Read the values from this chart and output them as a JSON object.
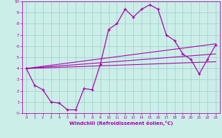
{
  "xlabel": "Windchill (Refroidissement éolien,°C)",
  "bg_color": "#cceee8",
  "line_color": "#aa00aa",
  "grid_color": "#99cccc",
  "xlim": [
    -0.5,
    23.5
  ],
  "ylim": [
    0,
    10
  ],
  "xticks": [
    0,
    1,
    2,
    3,
    4,
    5,
    6,
    7,
    8,
    9,
    10,
    11,
    12,
    13,
    14,
    15,
    16,
    17,
    18,
    19,
    20,
    21,
    22,
    23
  ],
  "yticks": [
    0,
    1,
    2,
    3,
    4,
    5,
    6,
    7,
    8,
    9,
    10
  ],
  "main_line_x": [
    0,
    1,
    2,
    3,
    4,
    5,
    6,
    7,
    8,
    9,
    10,
    11,
    12,
    13,
    14,
    15,
    16,
    17,
    18,
    19,
    20,
    21,
    22,
    23
  ],
  "main_line_y": [
    4.0,
    2.5,
    2.1,
    1.0,
    0.9,
    0.3,
    0.3,
    2.2,
    2.1,
    4.4,
    7.5,
    8.0,
    9.3,
    8.6,
    9.3,
    9.7,
    9.3,
    7.0,
    6.5,
    5.3,
    4.8,
    3.5,
    4.8,
    6.1
  ],
  "line2_x": [
    0,
    23
  ],
  "line2_y": [
    4.0,
    6.2
  ],
  "line3_x": [
    0,
    23
  ],
  "line3_y": [
    4.0,
    5.3
  ],
  "line4_x": [
    0,
    23
  ],
  "line4_y": [
    4.0,
    4.6
  ]
}
